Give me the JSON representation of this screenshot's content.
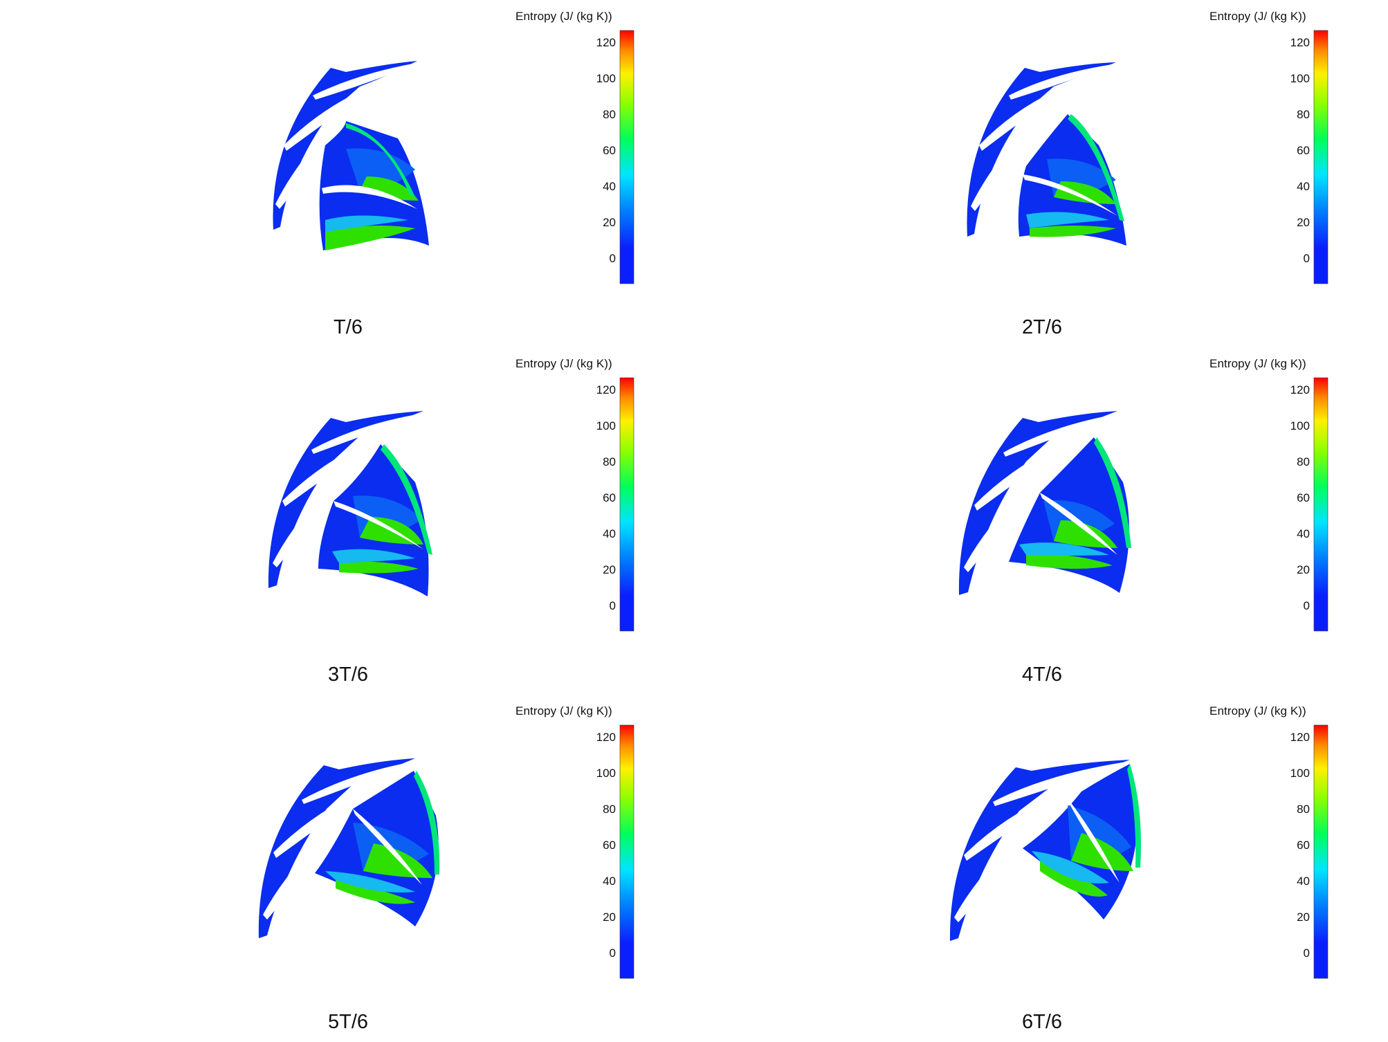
{
  "figure": {
    "legend": {
      "title": "Entropy (J/ (kg K))",
      "ticks": [
        {
          "value": 120,
          "label": "120"
        },
        {
          "value": 100,
          "label": "100"
        },
        {
          "value": 80,
          "label": "80"
        },
        {
          "value": 60,
          "label": "60"
        },
        {
          "value": 40,
          "label": "40"
        },
        {
          "value": 20,
          "label": "20"
        },
        {
          "value": 0,
          "label": "0"
        }
      ],
      "range": [
        -13,
        127
      ],
      "colors": [
        "#0a1fff",
        "#0080ff",
        "#00e5ff",
        "#00ff5a",
        "#8cff00",
        "#fff000",
        "#ff8c00",
        "#ff0000"
      ]
    },
    "panels": [
      {
        "caption": "T/6"
      },
      {
        "caption": "2T/6"
      },
      {
        "caption": "3T/6"
      },
      {
        "caption": "4T/6"
      },
      {
        "caption": "5T/6"
      },
      {
        "caption": "6T/6"
      }
    ],
    "field_colors": {
      "background_flow": "#0a2df0",
      "low_entropy": "#0b5ff4",
      "mid_entropy": "#16b9f0",
      "wake": "#00e678",
      "high_entropy": "#2ee000",
      "blade": "#ffffff"
    }
  }
}
